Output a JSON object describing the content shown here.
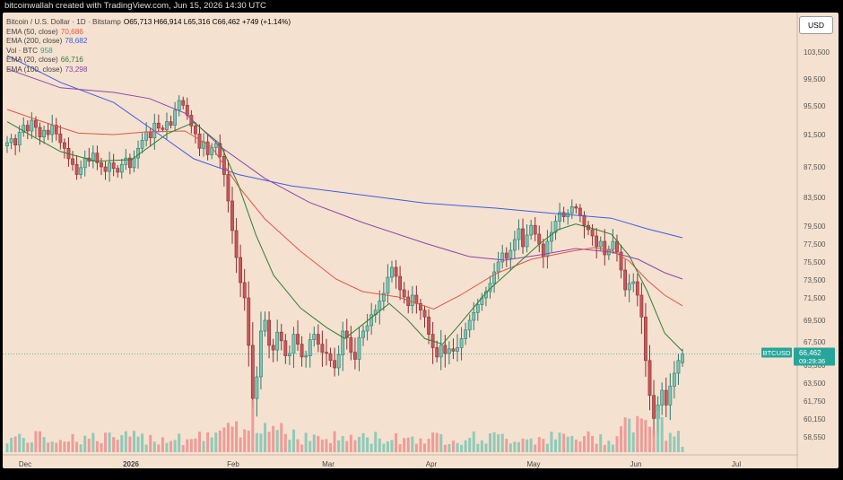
{
  "header": {
    "text": "bitcoinwallah created with TradingView.com, Jun 15, 2026 14:30 UTC"
  },
  "currency_button": "USD",
  "legend": [
    {
      "label": "Bitcoin / U.S. Dollar · 1D · Bitstamp",
      "value": "O65,713  H66,914  L65,316  C66,462  +749 (+1.14%)",
      "color": "#000000"
    },
    {
      "label": "EMA (50, close)",
      "value": "70,686",
      "color": "#e0564a"
    },
    {
      "label": "EMA (200, close)",
      "value": "78,682",
      "color": "#3a5ee6"
    },
    {
      "label": "Vol · BTC",
      "value": "958",
      "color": "#26a69a"
    },
    {
      "label": "EMA (20, close)",
      "value": "66,716",
      "color": "#2e7d32"
    },
    {
      "label": "EMA (100, close)",
      "value": "73,298",
      "color": "#8e44ad"
    }
  ],
  "price_tag": {
    "symbol": "BTCUSD",
    "price": "66,462",
    "countdown": "09:29:36"
  },
  "colors": {
    "up": "#7cc5b5",
    "down": "#c8575a",
    "up_wick": "#2a7a6e",
    "down_wick": "#8c2f32",
    "vol_up": "#7cc5b5",
    "vol_down": "#ec8f8f"
  },
  "chart_data": {
    "type": "candlestick",
    "title": "Bitcoin / U.S. Dollar · 1D · Bitstamp",
    "y_ticks": [
      58550,
      60150,
      61750,
      63500,
      65500,
      67500,
      69500,
      71500,
      73500,
      75500,
      77500,
      79500,
      83500,
      87500,
      91500,
      95500,
      99500,
      103500
    ],
    "x_ticks": [
      {
        "label": "Dec",
        "bold": false
      },
      {
        "label": "2026",
        "bold": true
      },
      {
        "label": "Feb",
        "bold": false
      },
      {
        "label": "Mar",
        "bold": false
      },
      {
        "label": "Apr",
        "bold": false
      },
      {
        "label": "May",
        "bold": false
      },
      {
        "label": "Jun",
        "bold": false
      },
      {
        "label": "Jul",
        "bold": false
      }
    ],
    "ohlc_last": {
      "open": 65713,
      "high": 66914,
      "low": 65316,
      "close": 66462,
      "change": 749,
      "change_pct": 1.14
    },
    "indicators": {
      "ema20": 66716,
      "ema50": 70686,
      "ema100": 73298,
      "ema200": 78682,
      "volume": 958
    },
    "close_series": [
      90500,
      91000,
      90200,
      91800,
      92800,
      92000,
      93500,
      92500,
      91200,
      92100,
      91500,
      92800,
      91600,
      90500,
      89800,
      88500,
      87800,
      86500,
      87400,
      88600,
      88200,
      89200,
      88000,
      87500,
      86900,
      88000,
      87300,
      86800,
      87800,
      88600,
      87400,
      88600,
      89800,
      90800,
      91900,
      91100,
      93100,
      92400,
      92200,
      93300,
      92800,
      94900,
      96300,
      95600,
      94200,
      92700,
      91600,
      89800,
      90600,
      89000,
      89900,
      90400,
      88800,
      86500,
      83000,
      79000,
      76000,
      73200,
      71500,
      67200,
      62000,
      64200,
      68500,
      69500,
      67200,
      66800,
      68400,
      67600,
      66300,
      66500,
      68200,
      67300,
      66200,
      66300,
      67700,
      68200,
      67300,
      66600,
      66500,
      65900,
      65200,
      66400,
      68500,
      67900,
      66600,
      66000,
      67900,
      68500,
      69000,
      70000,
      70400,
      71200,
      72000,
      73800,
      74900,
      73900,
      72400,
      71600,
      70800,
      71800,
      71000,
      70400,
      69800,
      68200,
      67000,
      66200,
      67200,
      66500,
      66900,
      66700,
      67000,
      67800,
      68600,
      69500,
      70200,
      70900,
      71500,
      72200,
      73100,
      74400,
      75500,
      76500,
      75900,
      76800,
      78000,
      79200,
      77200,
      78500,
      79600,
      78600,
      77500,
      76100,
      77800,
      78800,
      80200,
      81400,
      80800,
      81300,
      82200,
      82000,
      81000,
      79600,
      79100,
      78400,
      77200,
      77800,
      76300,
      76900,
      77800,
      76600,
      74600,
      72400,
      73100,
      73300,
      71800,
      69800,
      65900,
      62300,
      60200,
      61400,
      62800,
      61400,
      63200,
      64600,
      65900,
      66462
    ],
    "ema": [
      {
        "period": 200,
        "color": "#3a5ee6",
        "points": [
          [
            0,
            103000
          ],
          [
            60,
            99000
          ],
          [
            120,
            96000
          ],
          [
            160,
            92500
          ],
          [
            210,
            88500
          ],
          [
            260,
            86500
          ],
          [
            320,
            85000
          ],
          [
            400,
            83800
          ],
          [
            470,
            82700
          ],
          [
            550,
            82000
          ],
          [
            620,
            81200
          ],
          [
            680,
            80600
          ],
          [
            720,
            79200
          ],
          [
            760,
            78200
          ]
        ]
      },
      {
        "period": 100,
        "color": "#8e44ad",
        "points": [
          [
            0,
            101000
          ],
          [
            60,
            98200
          ],
          [
            120,
            97500
          ],
          [
            160,
            96600
          ],
          [
            200,
            94500
          ],
          [
            240,
            90000
          ],
          [
            290,
            86000
          ],
          [
            340,
            82800
          ],
          [
            400,
            80000
          ],
          [
            470,
            77600
          ],
          [
            520,
            76100
          ],
          [
            560,
            75700
          ],
          [
            600,
            76300
          ],
          [
            640,
            77000
          ],
          [
            680,
            76600
          ],
          [
            710,
            75800
          ],
          [
            740,
            74300
          ],
          [
            760,
            73600
          ]
        ]
      },
      {
        "period": 50,
        "color": "#e0564a",
        "points": [
          [
            0,
            95000
          ],
          [
            40,
            93300
          ],
          [
            80,
            91700
          ],
          [
            120,
            91500
          ],
          [
            160,
            91900
          ],
          [
            200,
            92000
          ],
          [
            230,
            90000
          ],
          [
            260,
            85000
          ],
          [
            290,
            80500
          ],
          [
            330,
            76700
          ],
          [
            370,
            73600
          ],
          [
            400,
            72200
          ],
          [
            440,
            71600
          ],
          [
            480,
            70500
          ],
          [
            510,
            71800
          ],
          [
            550,
            74200
          ],
          [
            590,
            75800
          ],
          [
            630,
            76600
          ],
          [
            660,
            77100
          ],
          [
            680,
            76800
          ],
          [
            700,
            75600
          ],
          [
            720,
            73500
          ],
          [
            740,
            71800
          ],
          [
            760,
            70800
          ]
        ]
      },
      {
        "period": 20,
        "color": "#2e7d32",
        "points": [
          [
            0,
            93300
          ],
          [
            30,
            91200
          ],
          [
            60,
            89400
          ],
          [
            100,
            88200
          ],
          [
            140,
            88400
          ],
          [
            180,
            91600
          ],
          [
            210,
            93200
          ],
          [
            240,
            90300
          ],
          [
            260,
            85200
          ],
          [
            280,
            78500
          ],
          [
            300,
            74000
          ],
          [
            330,
            70600
          ],
          [
            360,
            68800
          ],
          [
            380,
            67800
          ],
          [
            400,
            69100
          ],
          [
            430,
            71000
          ],
          [
            450,
            69600
          ],
          [
            470,
            67800
          ],
          [
            490,
            67300
          ],
          [
            510,
            69200
          ],
          [
            540,
            72200
          ],
          [
            570,
            74900
          ],
          [
            600,
            77600
          ],
          [
            620,
            79100
          ],
          [
            640,
            79800
          ],
          [
            660,
            79200
          ],
          [
            680,
            78600
          ],
          [
            700,
            76200
          ],
          [
            720,
            72300
          ],
          [
            740,
            68300
          ],
          [
            760,
            66700
          ]
        ]
      }
    ]
  }
}
